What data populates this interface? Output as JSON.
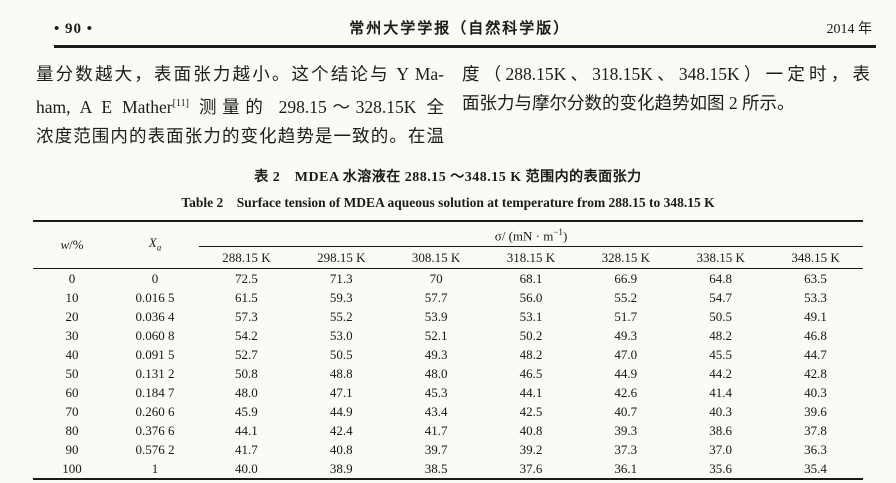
{
  "header": {
    "page_number": "• 90 •",
    "journal_title": "常州大学学报（自然科学版）",
    "year": "2014 年"
  },
  "body": {
    "left_column": {
      "line1": "量分数越大，表面张力越小。这个结论与 Y Ma-",
      "line2_pre": "ham, A E Mather",
      "line2_sup": "[11]",
      "line2_post": " 测量的 298.15～328.15K 全",
      "line3": "浓度范围内的表面张力的变化趋势是一致的。在温"
    },
    "right_column": {
      "line1": "度（288.15K、318.15K、348.15K）一定时，表",
      "line2": "面张力与摩尔分数的变化趋势如图 2 所示。"
    }
  },
  "table": {
    "caption_zh": "表 2　MDEA 水溶液在 288.15 ～348.15 K 范围内的表面张力",
    "caption_en": "Table 2　Surface tension of MDEA aqueous solution at temperature from 288.15 to 348.15 K",
    "col_w": "w",
    "col_w_unit": "/%",
    "col_x": "X",
    "col_x_sub": "a",
    "sigma_pre": "σ/ (mN · m",
    "sigma_sup": "−1",
    "sigma_post": ")",
    "temperatures": [
      "288.15 K",
      "298.15 K",
      "308.15 K",
      "318.15 K",
      "328.15 K",
      "338.15 K",
      "348.15 K"
    ],
    "rows": [
      [
        "0",
        "0",
        "72.5",
        "71.3",
        "70",
        "68.1",
        "66.9",
        "64.8",
        "63.5"
      ],
      [
        "10",
        "0.016 5",
        "61.5",
        "59.3",
        "57.7",
        "56.0",
        "55.2",
        "54.7",
        "53.3"
      ],
      [
        "20",
        "0.036 4",
        "57.3",
        "55.2",
        "53.9",
        "53.1",
        "51.7",
        "50.5",
        "49.1"
      ],
      [
        "30",
        "0.060 8",
        "54.2",
        "53.0",
        "52.1",
        "50.2",
        "49.3",
        "48.2",
        "46.8"
      ],
      [
        "40",
        "0.091 5",
        "52.7",
        "50.5",
        "49.3",
        "48.2",
        "47.0",
        "45.5",
        "44.7"
      ],
      [
        "50",
        "0.131 2",
        "50.8",
        "48.8",
        "48.0",
        "46.5",
        "44.9",
        "44.2",
        "42.8"
      ],
      [
        "60",
        "0.184 7",
        "48.0",
        "47.1",
        "45.3",
        "44.1",
        "42.6",
        "41.4",
        "40.3"
      ],
      [
        "70",
        "0.260 6",
        "45.9",
        "44.9",
        "43.4",
        "42.5",
        "40.7",
        "40.3",
        "39.6"
      ],
      [
        "80",
        "0.376 6",
        "44.1",
        "42.4",
        "41.7",
        "40.8",
        "39.3",
        "38.6",
        "37.8"
      ],
      [
        "90",
        "0.576 2",
        "41.7",
        "40.8",
        "39.7",
        "39.2",
        "37.3",
        "37.0",
        "36.3"
      ],
      [
        "100",
        "1",
        "40.0",
        "38.9",
        "38.5",
        "37.6",
        "36.1",
        "35.6",
        "35.4"
      ]
    ]
  }
}
